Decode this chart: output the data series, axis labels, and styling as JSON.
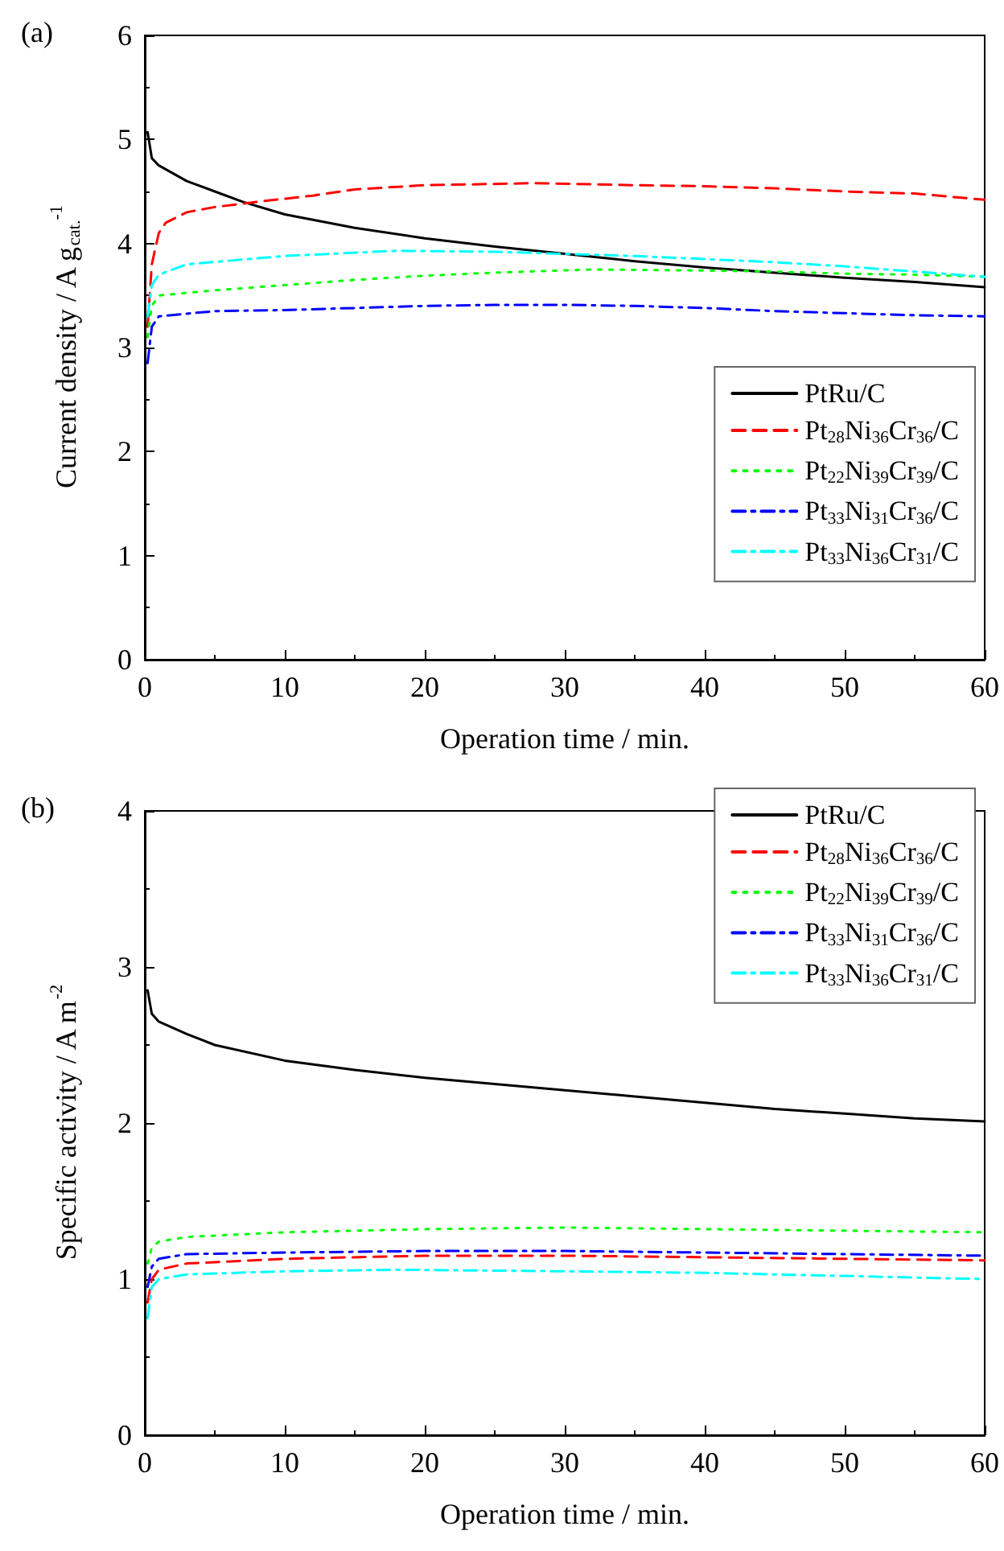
{
  "chart_data": [
    {
      "type": "line",
      "title": "(a)",
      "xlabel": "Operation time / min.",
      "ylabel": "Current density / A g$_{cat.}$$^{-1}$",
      "xlim": [
        0,
        60
      ],
      "xticks": [
        0,
        10,
        20,
        30,
        40,
        50,
        60
      ],
      "ylim": [
        0,
        6
      ],
      "yticks": [
        0,
        1,
        2,
        3,
        4,
        5,
        6
      ],
      "grid": false,
      "legend": "right",
      "marker": "none",
      "series": [
        {
          "name": "PtRu/C",
          "color": "#000000",
          "line_style": "solid",
          "x": [
            0.2,
            0.5,
            1,
            3,
            5,
            7,
            10,
            15,
            20,
            25,
            30,
            35,
            40,
            45,
            50,
            55,
            60
          ],
          "values": [
            5.07,
            4.82,
            4.75,
            4.6,
            4.5,
            4.4,
            4.28,
            4.15,
            4.05,
            3.97,
            3.9,
            3.83,
            3.77,
            3.72,
            3.67,
            3.63,
            3.58
          ]
        },
        {
          "name": "Pt$_{28}$Ni$_{36}$Cr$_{36}$/C",
          "color": "#ff0000",
          "line_style": "dashed",
          "x": [
            0.2,
            0.5,
            1,
            1.5,
            3,
            5,
            8,
            12,
            15,
            20,
            28,
            35,
            40,
            45,
            50,
            55,
            60
          ],
          "values": [
            3.2,
            3.8,
            4.1,
            4.2,
            4.3,
            4.35,
            4.4,
            4.46,
            4.52,
            4.56,
            4.58,
            4.56,
            4.55,
            4.53,
            4.5,
            4.48,
            4.42
          ]
        },
        {
          "name": "Pt$_{22}$Ni$_{39}$Cr$_{39}$/C",
          "color": "#00ff00",
          "line_style": "dotted",
          "x": [
            0.2,
            0.5,
            1,
            5,
            10,
            15,
            20,
            25,
            32,
            40,
            45,
            50,
            55,
            60
          ],
          "values": [
            3.1,
            3.4,
            3.5,
            3.55,
            3.6,
            3.65,
            3.69,
            3.72,
            3.75,
            3.74,
            3.73,
            3.71,
            3.7,
            3.68
          ]
        },
        {
          "name": "Pt$_{33}$Ni$_{31}$Cr$_{36}$/C",
          "color": "#0000ff",
          "line_style": "dashdot",
          "x": [
            0.2,
            0.5,
            1,
            5,
            10,
            15,
            20,
            25,
            30,
            35,
            40,
            45,
            50,
            55,
            60
          ],
          "values": [
            2.85,
            3.2,
            3.3,
            3.35,
            3.36,
            3.38,
            3.4,
            3.41,
            3.41,
            3.4,
            3.38,
            3.35,
            3.33,
            3.31,
            3.3
          ]
        },
        {
          "name": "Pt$_{33}$Ni$_{36}$Cr$_{31}$/C",
          "color": "#00ffff",
          "line_style": "dashdot",
          "x": [
            0.2,
            0.5,
            1,
            3,
            10,
            18,
            25,
            30,
            35,
            40,
            45,
            50,
            55,
            60
          ],
          "values": [
            3.3,
            3.6,
            3.7,
            3.8,
            3.88,
            3.93,
            3.92,
            3.9,
            3.88,
            3.85,
            3.82,
            3.78,
            3.73,
            3.68
          ]
        }
      ]
    },
    {
      "type": "line",
      "title": "(b)",
      "xlabel": "Operation time / min.",
      "ylabel": "Specific activity / A m$^{-2}$",
      "xlim": [
        0,
        60
      ],
      "xticks": [
        0,
        10,
        20,
        30,
        40,
        50,
        60
      ],
      "ylim": [
        0,
        4
      ],
      "yticks": [
        0,
        1,
        2,
        3,
        4
      ],
      "grid": false,
      "legend": "top right",
      "marker": "none",
      "series": [
        {
          "name": "PtRu/C",
          "color": "#000000",
          "line_style": "solid",
          "x": [
            0.2,
            0.5,
            1,
            3,
            5,
            10,
            15,
            20,
            25,
            30,
            35,
            40,
            45,
            50,
            55,
            60
          ],
          "values": [
            2.85,
            2.7,
            2.65,
            2.57,
            2.5,
            2.4,
            2.34,
            2.29,
            2.25,
            2.21,
            2.17,
            2.13,
            2.09,
            2.06,
            2.03,
            2.01
          ]
        },
        {
          "name": "Pt$_{28}$Ni$_{36}$Cr$_{36}$/C",
          "color": "#ff0000",
          "line_style": "dashed",
          "x": [
            0.2,
            0.5,
            1,
            3,
            10,
            20,
            30,
            40,
            50,
            60
          ],
          "values": [
            0.85,
            1.0,
            1.06,
            1.1,
            1.13,
            1.15,
            1.15,
            1.14,
            1.13,
            1.12
          ]
        },
        {
          "name": "Pt$_{22}$Ni$_{39}$Cr$_{39}$/C",
          "color": "#00ff00",
          "line_style": "dotted",
          "x": [
            0.2,
            0.5,
            1,
            3,
            10,
            20,
            30,
            40,
            50,
            60
          ],
          "values": [
            1.1,
            1.2,
            1.24,
            1.27,
            1.3,
            1.32,
            1.33,
            1.32,
            1.31,
            1.3
          ]
        },
        {
          "name": "Pt$_{33}$Ni$_{31}$Cr$_{36}$/C",
          "color": "#0000ff",
          "line_style": "dashdot",
          "x": [
            0.2,
            0.5,
            1,
            3,
            10,
            20,
            30,
            40,
            50,
            60
          ],
          "values": [
            0.95,
            1.08,
            1.13,
            1.16,
            1.17,
            1.18,
            1.18,
            1.17,
            1.16,
            1.15
          ]
        },
        {
          "name": "Pt$_{33}$Ni$_{36}$Cr$_{31}$/C",
          "color": "#00ffff",
          "line_style": "dashdot",
          "x": [
            0.2,
            0.5,
            1,
            3,
            10,
            18,
            30,
            40,
            50,
            60
          ],
          "values": [
            0.75,
            0.95,
            1.0,
            1.03,
            1.05,
            1.06,
            1.05,
            1.04,
            1.02,
            1.0
          ]
        }
      ]
    }
  ]
}
